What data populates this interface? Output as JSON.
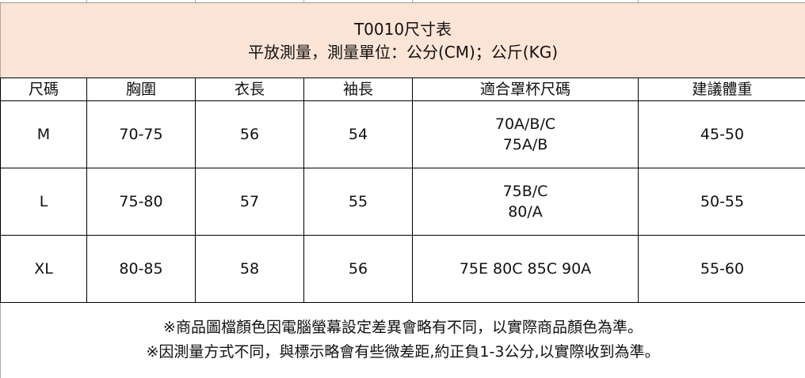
{
  "header": {
    "title": "T0010尺寸表",
    "subtitle": "平放測量，測量單位：公分(CM)；公斤(KG)",
    "background": "#fce4d6"
  },
  "table": {
    "columns": [
      "尺碼",
      "胸圍",
      "衣長",
      "袖長",
      "適合罩杯尺碼",
      "建議體重"
    ],
    "rows": [
      {
        "size": "M",
        "chest": "70-75",
        "length": "56",
        "sleeve": "54",
        "cup": [
          "70A/B/C",
          "75A/B"
        ],
        "weight": "45-50"
      },
      {
        "size": "L",
        "chest": "75-80",
        "length": "57",
        "sleeve": "55",
        "cup": [
          "75B/C",
          "80/A"
        ],
        "weight": "50-55"
      },
      {
        "size": "XL",
        "chest": "80-85",
        "length": "58",
        "sleeve": "56",
        "cup": [
          "75E 80C 85C 90A"
        ],
        "weight": "55-60"
      }
    ]
  },
  "footer": {
    "note1": "※商品圖檔顏色因電腦螢幕設定差異會略有不同，以實際商品顏色為準。",
    "note2": "※因測量方式不同，與標示略會有些微差距,約正負1-3公分,以實際收到為準。"
  }
}
